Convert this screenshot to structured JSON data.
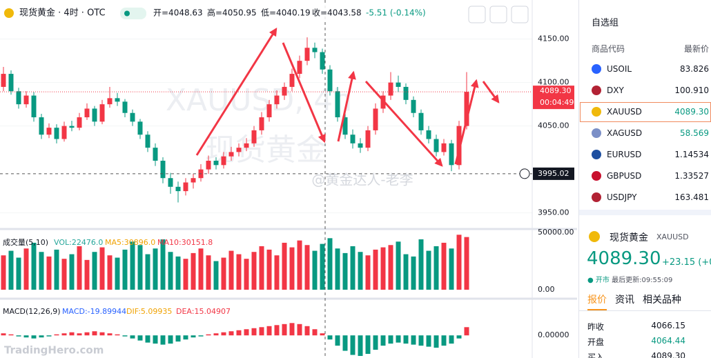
{
  "header": {
    "title": "现货黄金 · 4时 · OTC",
    "ohlc": [
      "开=4048.63",
      "高=4050.95",
      "低=4040.19",
      "收=4043.58"
    ],
    "change": "-5.51 (-0.14%)"
  },
  "watermark": {
    "symbol": "XAUUSD, 4h",
    "name": "现货黄金",
    "author": "@黄金达人-老李",
    "logo": "TradingHero.com"
  },
  "chart_data": [
    {
      "type": "candlestick",
      "up_color": "#f23645",
      "down_color": "#089981",
      "ylim": [
        3933,
        4195
      ],
      "yticks": [
        {
          "value": 4150,
          "label": "4150.00"
        },
        {
          "value": 4100,
          "label": "4100.00"
        },
        {
          "value": 4050,
          "label": "4050.00"
        },
        {
          "value": 3950,
          "label": "3950.00"
        }
      ],
      "grid": true,
      "last_price": {
        "value": 4089.3,
        "label": "4089.30"
      },
      "countdown": "00:04:49",
      "crosshair": 3995.02,
      "open": [
        4095,
        4110,
        4090,
        4075,
        4085,
        4060,
        4040,
        4048,
        4035,
        4050,
        4048,
        4060,
        4070,
        4055,
        4075,
        4082,
        4078,
        4065,
        4055,
        4040,
        4025,
        4010,
        3990,
        3980,
        3975,
        3985,
        3990,
        4000,
        4010,
        4005,
        4015,
        4020,
        4025,
        4030,
        4045,
        4060,
        4075,
        4085,
        4095,
        4110,
        4125,
        4140,
        4135,
        4115,
        4090,
        4060,
        4040,
        4030,
        4025,
        4045,
        4070,
        4085,
        4100,
        4095,
        4080,
        4065,
        4045,
        4035,
        4020,
        4030,
        4005,
        4050
      ],
      "high": [
        4118,
        4114,
        4094,
        4090,
        4089,
        4064,
        4053,
        4052,
        4055,
        4056,
        4065,
        4076,
        4073,
        4080,
        4095,
        4088,
        4081,
        4069,
        4058,
        4044,
        4030,
        4014,
        3996,
        3986,
        3990,
        3995,
        4006,
        4016,
        4014,
        4020,
        4026,
        4030,
        4036,
        4050,
        4066,
        4080,
        4091,
        4100,
        4116,
        4131,
        4152,
        4146,
        4139,
        4120,
        4095,
        4065,
        4046,
        4036,
        4050,
        4076,
        4090,
        4112,
        4108,
        4099,
        4084,
        4069,
        4050,
        4040,
        4035,
        4034,
        4056,
        4112
      ],
      "low": [
        4090,
        4086,
        4070,
        4071,
        4055,
        4035,
        4036,
        4030,
        4032,
        4044,
        4045,
        4057,
        4050,
        4052,
        4071,
        4073,
        4060,
        4050,
        4035,
        4020,
        4004,
        3984,
        3972,
        3962,
        3970,
        3978,
        3986,
        3995,
        4000,
        4001,
        4010,
        4015,
        4021,
        4026,
        4040,
        4055,
        4070,
        4080,
        4090,
        4105,
        4120,
        4128,
        4110,
        4085,
        4055,
        4035,
        4024,
        4019,
        4021,
        4040,
        4065,
        4080,
        4089,
        4075,
        4060,
        4040,
        4030,
        4015,
        4016,
        3998,
        4000,
        4046
      ],
      "close": [
        4110,
        4090,
        4075,
        4085,
        4060,
        4040,
        4048,
        4035,
        4050,
        4048,
        4060,
        4070,
        4055,
        4075,
        4082,
        4078,
        4065,
        4055,
        4040,
        4025,
        4010,
        3990,
        3980,
        3975,
        3985,
        3990,
        4000,
        4010,
        4005,
        4015,
        4020,
        4025,
        4030,
        4045,
        4060,
        4075,
        4085,
        4095,
        4110,
        4125,
        4140,
        4135,
        4115,
        4090,
        4060,
        4040,
        4030,
        4025,
        4045,
        4070,
        4085,
        4100,
        4095,
        4080,
        4065,
        4045,
        4035,
        4020,
        4030,
        4005,
        4050,
        4089.3
      ]
    },
    {
      "type": "bar",
      "title": "成交量(5,10)",
      "legend": [
        "VOL:22476.0",
        "MA5:30896.0",
        "MA10:30151.8"
      ],
      "ylim": [
        0,
        50000
      ],
      "yticks": [
        {
          "value": 50000,
          "label": "50000.00"
        },
        {
          "value": 0,
          "label": "0.00"
        }
      ],
      "values": [
        30000,
        34000,
        28000,
        36000,
        41000,
        33000,
        29000,
        35000,
        27000,
        31000,
        38000,
        26000,
        33000,
        37000,
        30000,
        28000,
        35000,
        42000,
        39000,
        31000,
        36000,
        44000,
        33000,
        29000,
        27000,
        32000,
        36000,
        30000,
        25000,
        28000,
        34000,
        31000,
        27000,
        33000,
        38000,
        35000,
        30000,
        41000,
        37000,
        43000,
        39000,
        34000,
        40000,
        45000,
        36000,
        32000,
        38000,
        33000,
        30000,
        35000,
        37000,
        39000,
        42000,
        31000,
        29000,
        44000,
        34000,
        38000,
        41000,
        36000,
        48000,
        46000
      ]
    },
    {
      "type": "bar",
      "title": "MACD(12,26,9)",
      "legend": [
        "MACD:-19.89944",
        "DIF:5.09935",
        "DEA:15.04907"
      ],
      "up_color": "#f23645",
      "down_color": "#089981",
      "ylim": [
        -22,
        31
      ],
      "yticks": [
        {
          "value": 0,
          "label": "0.00000"
        }
      ],
      "values": [
        2,
        1,
        -1,
        -2,
        -3,
        -2,
        -1,
        1,
        2,
        3,
        2,
        3,
        4,
        3,
        2,
        1,
        -1,
        -3,
        -5,
        -7,
        -8,
        -9,
        -8,
        -6,
        -4,
        -2,
        -1,
        1,
        2,
        3,
        4,
        5,
        6,
        7,
        8,
        9,
        10,
        11,
        12,
        11,
        9,
        6,
        2,
        -4,
        -10,
        -15,
        -19,
        -20,
        -18,
        -14,
        -10,
        -8,
        -7,
        -8,
        -9,
        -10,
        -11,
        -12,
        -10,
        -8,
        -3,
        8
      ]
    }
  ],
  "watchlist": {
    "title": "自选组",
    "columns": [
      "商品代码",
      "最新价"
    ],
    "rows": [
      {
        "symbol": "USOIL",
        "price": "83.826",
        "color": "#2962ff"
      },
      {
        "symbol": "DXY",
        "price": "100.910",
        "color": "#b22234"
      },
      {
        "symbol": "XAUUSD",
        "price": "4089.30",
        "color": "#f0b90b"
      },
      {
        "symbol": "XAGUSD",
        "price": "58.569",
        "color": "#7b8fc7"
      },
      {
        "symbol": "EURUSD",
        "price": "1.14534",
        "color": "#1e4fa0"
      },
      {
        "symbol": "GBPUSD",
        "price": "1.33527",
        "color": "#c8102e"
      },
      {
        "symbol": "USDJPY",
        "price": "163.481",
        "color": "#b22234"
      }
    ]
  },
  "detail": {
    "name": "现货黄金",
    "symbol": "XAUUSD",
    "price": "4089.30",
    "change": "+23.15 (+0",
    "status": "开市",
    "updated": "最后更新:09:55:09",
    "tabs": [
      "报价",
      "资讯",
      "相关品种"
    ],
    "stats": [
      [
        "昨收",
        "4066.15"
      ],
      [
        "开盘",
        "4064.44"
      ],
      [
        "买入",
        "4089.30"
      ]
    ]
  }
}
